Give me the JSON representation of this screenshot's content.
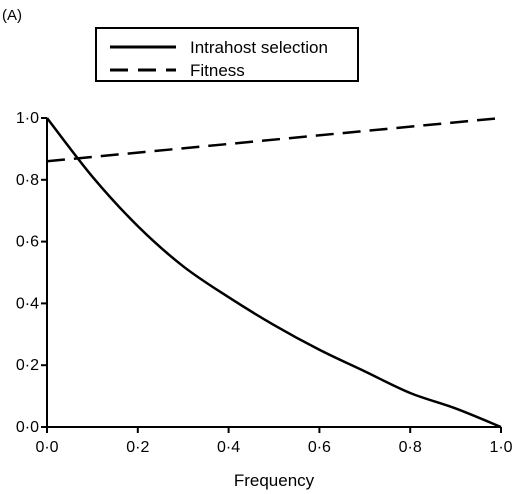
{
  "chart_data": {
    "type": "line",
    "panel_label": "(A)",
    "xlabel": "Frequency",
    "ylabel": "",
    "xlim": [
      0,
      1
    ],
    "ylim": [
      0,
      1
    ],
    "x_ticks": [
      "0·0",
      "0·2",
      "0·4",
      "0·6",
      "0·8",
      "1·0"
    ],
    "y_ticks": [
      "0·0",
      "0·2",
      "0·4",
      "0·6",
      "0·8",
      "1·0"
    ],
    "grid": false,
    "legend_position": "top",
    "series": [
      {
        "name": "Intrahost selection",
        "style": "solid",
        "color": "#000000",
        "x": [
          0,
          0.1,
          0.2,
          0.3,
          0.4,
          0.5,
          0.6,
          0.7,
          0.8,
          0.9,
          1.0
        ],
        "y": [
          1.0,
          0.81,
          0.65,
          0.52,
          0.42,
          0.33,
          0.25,
          0.18,
          0.11,
          0.06,
          0.0
        ]
      },
      {
        "name": "Fitness",
        "style": "dashed",
        "color": "#000000",
        "x": [
          0,
          1
        ],
        "y": [
          0.86,
          1.0
        ]
      }
    ]
  }
}
